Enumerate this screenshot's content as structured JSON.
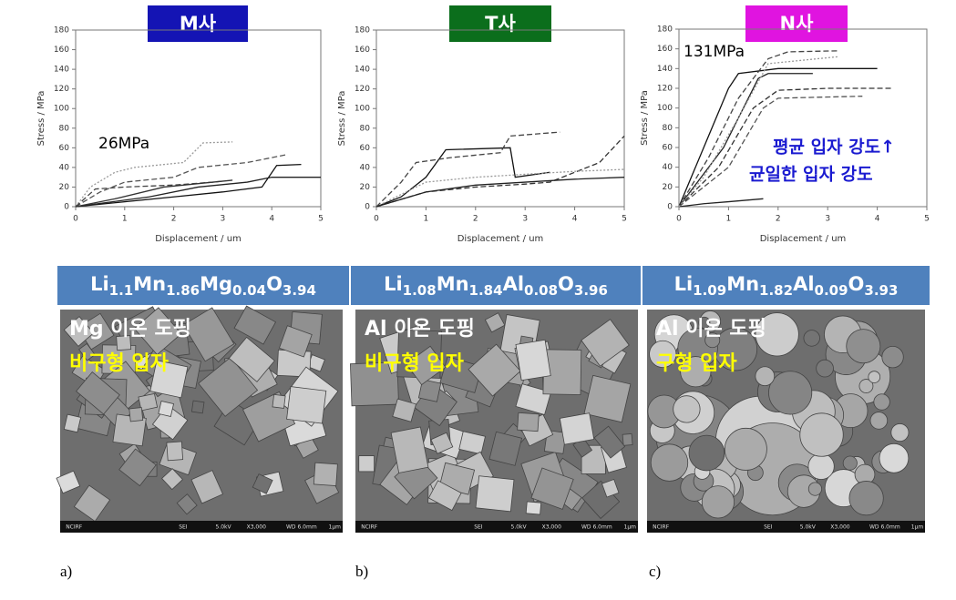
{
  "chart_data": [
    {
      "type": "line",
      "title": "M사",
      "title_background": "#1414b4",
      "xlabel": "Displacement / um",
      "ylabel": "Stress / MPa",
      "xlim": [
        0,
        5
      ],
      "ylim": [
        0,
        180
      ],
      "xticks": [
        0,
        1,
        2,
        3,
        4,
        5
      ],
      "yticks": [
        0,
        20,
        40,
        60,
        80,
        100,
        120,
        140,
        160,
        180
      ],
      "annotations": [
        {
          "text": "26MPa"
        }
      ],
      "series": [
        {
          "color": "#999999",
          "style": "dotted",
          "x": [
            0,
            0.3,
            0.8,
            1.2,
            2.2,
            2.6,
            3.2
          ],
          "values": [
            0,
            20,
            35,
            40,
            45,
            65,
            66
          ]
        },
        {
          "color": "#555555",
          "style": "dashed",
          "x": [
            0,
            0.5,
            1,
            2,
            2.5,
            3.5,
            4.3
          ],
          "values": [
            0,
            15,
            25,
            30,
            40,
            45,
            53
          ]
        },
        {
          "color": "#111111",
          "style": "solid",
          "x": [
            0,
            1,
            2,
            3,
            3.8,
            4.1,
            4.6
          ],
          "values": [
            0,
            5,
            10,
            15,
            20,
            42,
            43
          ]
        },
        {
          "color": "#222222",
          "style": "solid",
          "x": [
            0,
            1.5,
            2.5,
            3.5,
            4,
            5
          ],
          "values": [
            0,
            10,
            20,
            25,
            30,
            30
          ]
        },
        {
          "color": "#444444",
          "style": "dashed",
          "x": [
            0,
            0.4,
            1,
            2,
            2.8,
            3
          ],
          "values": [
            0,
            18,
            20,
            22,
            25,
            26
          ]
        },
        {
          "color": "#333333",
          "style": "solid",
          "x": [
            0,
            0.8,
            1.8,
            2.8,
            3.2
          ],
          "values": [
            0,
            8,
            20,
            25,
            27
          ]
        }
      ]
    },
    {
      "type": "line",
      "title": "T사",
      "title_background": "#0b6e1c",
      "xlabel": "Displacement / um",
      "ylabel": "Stress / MPa",
      "xlim": [
        0,
        5
      ],
      "ylim": [
        0,
        180
      ],
      "xticks": [
        0,
        1,
        2,
        3,
        4,
        5
      ],
      "yticks": [
        0,
        20,
        40,
        60,
        80,
        100,
        120,
        140,
        160,
        180
      ],
      "series": [
        {
          "color": "#111111",
          "style": "solid",
          "x": [
            0,
            0.5,
            1,
            1.4,
            2.7,
            2.8,
            3.5
          ],
          "values": [
            0,
            10,
            30,
            58,
            60,
            30,
            35
          ]
        },
        {
          "color": "#444444",
          "style": "dashed",
          "x": [
            0,
            0.5,
            0.8,
            1.5,
            2.5,
            2.7,
            3.7
          ],
          "values": [
            0,
            25,
            45,
            50,
            55,
            72,
            76
          ]
        },
        {
          "color": "#333333",
          "style": "dashed",
          "x": [
            0,
            1,
            2,
            3,
            3.5,
            4.5,
            5
          ],
          "values": [
            0,
            15,
            20,
            23,
            25,
            45,
            72
          ]
        },
        {
          "color": "#999999",
          "style": "dotted",
          "x": [
            0,
            1,
            2,
            3,
            4,
            5
          ],
          "values": [
            0,
            25,
            30,
            33,
            36,
            38
          ]
        },
        {
          "color": "#222222",
          "style": "solid",
          "x": [
            0,
            1,
            2,
            3,
            4,
            5
          ],
          "values": [
            0,
            15,
            22,
            25,
            28,
            30
          ]
        }
      ]
    },
    {
      "type": "line",
      "title": "N사",
      "title_background": "#e014e0",
      "xlabel": "Displacement / um",
      "ylabel": "Stress / MPa",
      "xlim": [
        0,
        5
      ],
      "ylim": [
        0,
        180
      ],
      "xticks": [
        0,
        1,
        2,
        3,
        4,
        5
      ],
      "yticks": [
        0,
        20,
        40,
        60,
        80,
        100,
        120,
        140,
        160,
        180
      ],
      "annotations": [
        {
          "text": "131MPa"
        },
        {
          "text": "평균 입자 강도↑"
        },
        {
          "text": "균일한 입자 강도"
        }
      ],
      "series": [
        {
          "color": "#111111",
          "style": "solid",
          "x": [
            0,
            0.5,
            1,
            1.2,
            2,
            4
          ],
          "values": [
            0,
            60,
            120,
            135,
            140,
            140
          ]
        },
        {
          "color": "#444444",
          "style": "dashed",
          "x": [
            0,
            0.6,
            1.2,
            1.8,
            2.2,
            3.2
          ],
          "values": [
            0,
            50,
            110,
            150,
            157,
            158
          ]
        },
        {
          "color": "#333333",
          "style": "dashed",
          "x": [
            0,
            0.8,
            1.5,
            2,
            3,
            4.3
          ],
          "values": [
            0,
            40,
            100,
            118,
            120,
            120
          ]
        },
        {
          "color": "#222222",
          "style": "solid",
          "x": [
            0,
            0.9,
            1.6,
            1.8,
            2.7
          ],
          "values": [
            0,
            60,
            130,
            135,
            135
          ]
        },
        {
          "color": "#555555",
          "style": "dashed",
          "x": [
            0,
            1,
            1.7,
            2,
            3.7
          ],
          "values": [
            0,
            40,
            100,
            110,
            112
          ]
        },
        {
          "color": "#222222",
          "style": "solid",
          "x": [
            0,
            0.5,
            1,
            1.7
          ],
          "values": [
            0,
            3,
            5,
            8
          ]
        },
        {
          "color": "#999999",
          "style": "dotted",
          "x": [
            0,
            0.5,
            1.2,
            1.8,
            3.2
          ],
          "values": [
            0,
            30,
            90,
            145,
            152
          ]
        }
      ]
    }
  ],
  "panels": [
    {
      "formula": [
        [
          "Li",
          "1.1"
        ],
        [
          "Mn",
          "1.86"
        ],
        [
          "Mg",
          "0.04"
        ],
        [
          "O",
          "3.94"
        ]
      ],
      "sem_labels": [
        "Mg 이온 도핑",
        "비구형 입자"
      ],
      "sem_footer": [
        "NCIRF",
        "SEI",
        "5.0kV",
        "X3,000",
        "WD 6.0mm",
        "1μm"
      ],
      "caption": "a)"
    },
    {
      "formula": [
        [
          "Li",
          "1.08"
        ],
        [
          "Mn",
          "1.84"
        ],
        [
          "Al",
          "0.08"
        ],
        [
          "O",
          "3.96"
        ]
      ],
      "sem_labels": [
        "Al 이온 도핑",
        "비구형 입자"
      ],
      "sem_footer": [
        "NCIRF",
        "SEI",
        "5.0kV",
        "X3,000",
        "WD 6.0mm",
        "1μm"
      ],
      "caption": "b)"
    },
    {
      "formula": [
        [
          "Li",
          "1.09"
        ],
        [
          "Mn",
          "1.82"
        ],
        [
          "Al",
          "0.09"
        ],
        [
          "O",
          "3.93"
        ]
      ],
      "sem_labels": [
        "Al 이온 도핑",
        "구형 입자"
      ],
      "sem_footer": [
        "NCIRF",
        "SEI",
        "5.0kV",
        "X3,000",
        "WD 6.0mm",
        "1μm"
      ],
      "caption": "c)"
    }
  ]
}
